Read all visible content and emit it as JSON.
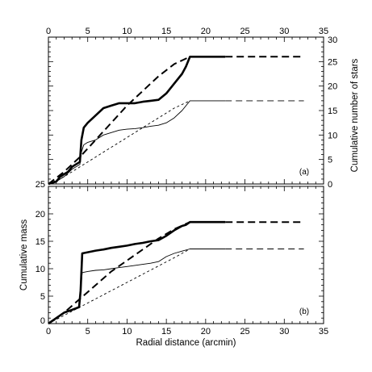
{
  "chart_data": [
    {
      "type": "line",
      "panel_label": "(a)",
      "x_ticks": [
        "0",
        "5",
        "10",
        "15",
        "20",
        "25",
        "30",
        "35"
      ],
      "xlim": [
        0,
        35
      ],
      "ylim": [
        0,
        30
      ],
      "y_ticks": [
        "0",
        "5",
        "10",
        "15",
        "20",
        "25",
        "30"
      ],
      "ylabel": "Cumulative number of stars",
      "left_corner_label": "25",
      "series": [
        {
          "style": "thick-solid",
          "x": [
            0,
            1,
            1.5,
            2,
            2.5,
            3,
            3.5,
            4,
            4.2,
            4.5,
            5,
            6,
            7,
            8,
            9,
            10,
            11,
            12,
            13,
            14,
            15,
            16,
            17,
            17.5,
            18,
            22.5
          ],
          "y": [
            0,
            0.5,
            1.5,
            2,
            2.5,
            3.5,
            4,
            4.5,
            9,
            11.5,
            12.5,
            14,
            15.5,
            16,
            16.5,
            16.5,
            16.5,
            16.8,
            17,
            17.2,
            18.5,
            20.5,
            22.5,
            24,
            26,
            26
          ]
        },
        {
          "style": "thick-dashed",
          "x": [
            22.5,
            32.5
          ],
          "y": [
            26,
            26
          ]
        },
        {
          "style": "thin-solid",
          "x": [
            0,
            1,
            2,
            3,
            4,
            4.2,
            4.5,
            5,
            6,
            7,
            8,
            9,
            10,
            11,
            12,
            13,
            14,
            15,
            16,
            17,
            18,
            22.5
          ],
          "y": [
            0,
            0.5,
            1.5,
            3,
            4,
            6.5,
            8,
            8.5,
            9,
            10,
            10.5,
            11,
            11.2,
            11.3,
            11.5,
            11.8,
            12,
            12.5,
            13.5,
            15,
            17,
            17
          ]
        },
        {
          "style": "thin-dashed",
          "x": [
            22.5,
            32.5
          ],
          "y": [
            17,
            17
          ]
        },
        {
          "style": "thick-dashed",
          "x": [
            0,
            2,
            4,
            6,
            8,
            10,
            12,
            14,
            16,
            18
          ],
          "y": [
            0,
            2.5,
            5.5,
            9,
            12.5,
            16,
            19,
            22,
            24.5,
            26
          ]
        },
        {
          "style": "thin-dotted",
          "x": [
            0,
            2,
            4,
            6,
            8,
            10,
            12,
            14,
            16,
            18
          ],
          "y": [
            0,
            1.5,
            3.5,
            5.5,
            7.5,
            9.5,
            11.5,
            13.5,
            15.5,
            17
          ]
        }
      ]
    },
    {
      "type": "line",
      "panel_label": "(b)",
      "xlabel": "Radial distance (arcmin)",
      "ylabel": "Cumulative mass",
      "x_ticks": [
        "0",
        "5",
        "10",
        "15",
        "20",
        "25",
        "30",
        "35"
      ],
      "xlim": [
        0,
        35
      ],
      "ylim": [
        0,
        25
      ],
      "y_ticks": [
        "0",
        "5",
        "10",
        "15",
        "20"
      ],
      "series": [
        {
          "style": "thick-solid",
          "x": [
            0,
            1,
            2,
            3,
            3.9,
            4.1,
            4.3,
            5,
            6,
            7,
            8,
            9,
            10,
            11,
            12,
            13,
            14,
            15,
            16,
            17,
            17.5,
            18,
            22.5
          ],
          "y": [
            0,
            1,
            2,
            2.5,
            3,
            6,
            12.8,
            13,
            13.3,
            13.5,
            13.8,
            14,
            14.2,
            14.5,
            14.7,
            15,
            15.2,
            16,
            17,
            17.8,
            18,
            18.5,
            18.5
          ]
        },
        {
          "style": "thick-dashed",
          "x": [
            22.5,
            32.5
          ],
          "y": [
            18.5,
            18.5
          ]
        },
        {
          "style": "thin-solid",
          "x": [
            0,
            1,
            2,
            3,
            3.9,
            4.1,
            4.3,
            5,
            6,
            7,
            8,
            9,
            10,
            11,
            12,
            13,
            14,
            15,
            16,
            17,
            18,
            22.5
          ],
          "y": [
            0,
            1,
            2,
            2.5,
            3,
            6,
            9.3,
            9.5,
            9.7,
            9.8,
            10,
            10.2,
            10.4,
            10.6,
            10.8,
            11,
            11.3,
            12.2,
            12.8,
            13.2,
            13.6,
            13.6
          ]
        },
        {
          "style": "thin-dashed",
          "x": [
            22.5,
            32.5
          ],
          "y": [
            13.6,
            13.6
          ]
        },
        {
          "style": "thick-dashed",
          "x": [
            0,
            2,
            4,
            6,
            8,
            10,
            12,
            14,
            16,
            18
          ],
          "y": [
            0,
            2,
            4.5,
            7,
            9.5,
            11.5,
            13.5,
            15.5,
            17.2,
            18.5
          ]
        },
        {
          "style": "thin-dotted",
          "x": [
            0,
            2,
            4,
            6,
            8,
            10,
            12,
            14,
            16,
            18
          ],
          "y": [
            0,
            1.5,
            3,
            4.5,
            6,
            7.5,
            9,
            10.5,
            12,
            13.6
          ]
        }
      ]
    }
  ]
}
